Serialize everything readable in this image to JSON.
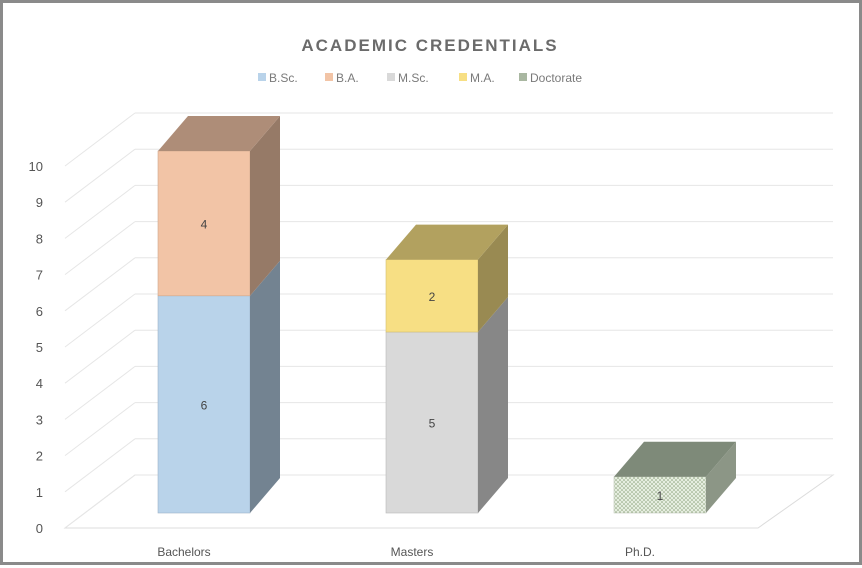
{
  "chart_data": {
    "type": "bar",
    "variant": "stacked-3d-column",
    "title": "ACADEMIC CREDENTIALS",
    "categories": [
      "Bachelors",
      "Masters",
      "Ph.D."
    ],
    "series": [
      {
        "name": "B.Sc.",
        "values": [
          6,
          0,
          0
        ],
        "color": "#b9d3ea"
      },
      {
        "name": "B.A.",
        "values": [
          4,
          0,
          0
        ],
        "color": "#f2c4a6"
      },
      {
        "name": "M.Sc.",
        "values": [
          0,
          5,
          0
        ],
        "color": "#d9d9d9"
      },
      {
        "name": "M.A.",
        "values": [
          0,
          2,
          0
        ],
        "color": "#f7df84"
      },
      {
        "name": "Doctorate",
        "values": [
          0,
          0,
          1
        ],
        "color": "#dfe9d9"
      }
    ],
    "ylim": [
      0,
      10
    ],
    "yticks": [
      0,
      1,
      2,
      3,
      4,
      5,
      6,
      7,
      8,
      9,
      10
    ],
    "grid": true,
    "legend_position": "top"
  }
}
